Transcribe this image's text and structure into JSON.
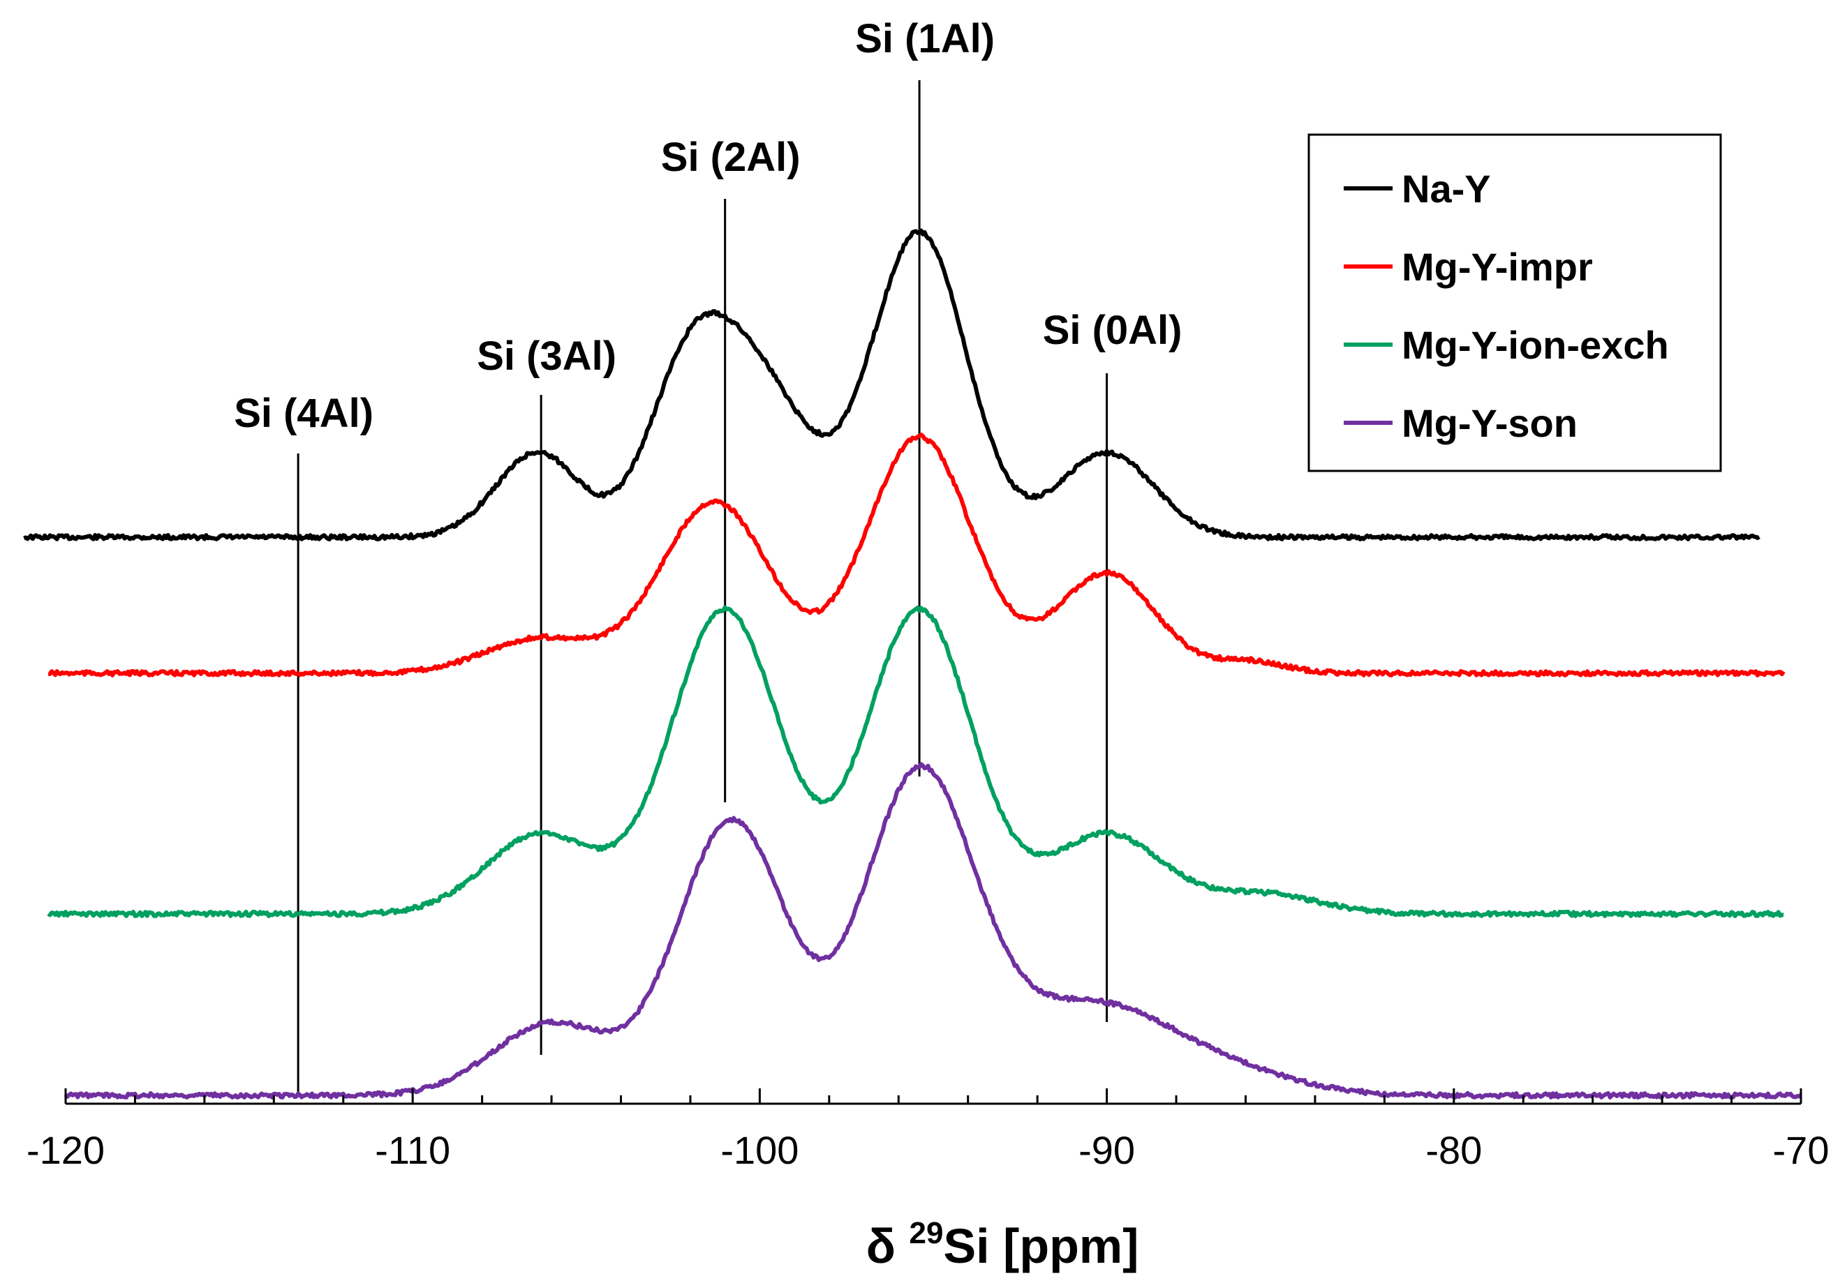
{
  "chart_data": {
    "type": "line",
    "xlabel_prefix": "δ ",
    "xlabel_sup": "29",
    "xlabel_suffix": "Si [ppm]",
    "xlim": [
      -120,
      -70
    ],
    "x_ticks": [
      "-120",
      "-110",
      "-100",
      "-90",
      "-80",
      "-70"
    ],
    "x_tick_values": [
      -120,
      -110,
      -100,
      -90,
      -80,
      -70
    ],
    "legend_position": "top-right",
    "grid": false,
    "peak_markers": [
      {
        "label": "Si (4Al)",
        "x": -113.3
      },
      {
        "label": "Si (3Al)",
        "x": -106.3
      },
      {
        "label": "Si (2Al)",
        "x": -101.0
      },
      {
        "label": "Si (1Al)",
        "x": -95.4
      },
      {
        "label": "Si (0Al)",
        "x": -90.0
      }
    ],
    "series": [
      {
        "name": "Na-Y",
        "color": "#000000",
        "baseline_offset": 3,
        "x_range": [
          -121.2,
          -71.2
        ],
        "peaks": [
          {
            "x": -106.4,
            "amplitude": 0.85,
            "width": 1.2
          },
          {
            "x": -102.2,
            "amplitude": 1.05,
            "width": 1.1
          },
          {
            "x": -100.4,
            "amplitude": 1.75,
            "width": 1.6
          },
          {
            "x": -95.4,
            "amplitude": 3.05,
            "width": 1.35
          },
          {
            "x": -90.0,
            "amplitude": 0.85,
            "width": 1.35
          }
        ]
      },
      {
        "name": "Mg-Y-impr",
        "color": "#ff0000",
        "baseline_offset": 2,
        "x_range": [
          -120.5,
          -70.5
        ],
        "peaks": [
          {
            "x": -106.3,
            "amplitude": 0.35,
            "width": 1.6
          },
          {
            "x": -101.3,
            "amplitude": 1.72,
            "width": 1.55
          },
          {
            "x": -95.4,
            "amplitude": 2.37,
            "width": 1.5
          },
          {
            "x": -90.0,
            "amplitude": 1.0,
            "width": 1.4
          },
          {
            "x": -85.9,
            "amplitude": 0.12,
            "width": 1.0
          }
        ]
      },
      {
        "name": "Mg-Y-ion-exch",
        "color": "#00a060",
        "baseline_offset": 1,
        "x_range": [
          -120.5,
          -70.5
        ],
        "peaks": [
          {
            "x": -106.3,
            "amplitude": 0.8,
            "width": 1.6
          },
          {
            "x": -101.0,
            "amplitude": 3.05,
            "width": 1.55
          },
          {
            "x": -95.4,
            "amplitude": 3.05,
            "width": 1.5
          },
          {
            "x": -90.0,
            "amplitude": 0.8,
            "width": 1.6
          },
          {
            "x": -85.5,
            "amplitude": 0.2,
            "width": 1.6
          }
        ]
      },
      {
        "name": "Mg-Y-son",
        "color": "#7030a0",
        "baseline_offset": 0,
        "x_range": [
          -120.0,
          -70.0
        ],
        "peaks": [
          {
            "x": -106.0,
            "amplitude": 0.72,
            "width": 1.7
          },
          {
            "x": -100.8,
            "amplitude": 2.75,
            "width": 1.55
          },
          {
            "x": -95.4,
            "amplitude": 3.2,
            "width": 1.6
          },
          {
            "x": -90.5,
            "amplitude": 0.9,
            "width": 2.3
          },
          {
            "x": -86.5,
            "amplitude": 0.2,
            "width": 2.0
          }
        ]
      }
    ]
  }
}
